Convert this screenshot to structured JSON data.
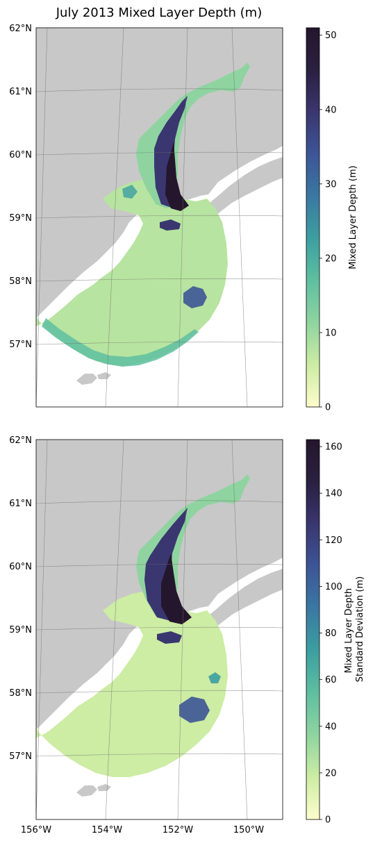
{
  "figure": {
    "title": "July 2013 Mixed Layer Depth (m)"
  },
  "map": {
    "lat_labels": [
      "62°N",
      "61°N",
      "60°N",
      "59°N",
      "58°N",
      "57°N"
    ],
    "lon_labels": [
      "156°W",
      "154°W",
      "152°W",
      "150°W"
    ],
    "colors": {
      "land": "#c8c8c8",
      "coast_white": "#ffffff",
      "grid": "#6e6e6e"
    }
  },
  "panels": [
    {
      "name": "mixed-layer-depth",
      "colorbar": {
        "label_lines": [
          "Mixed Layer Depth (m)"
        ],
        "ticks": [
          "0",
          "10",
          "20",
          "30",
          "40",
          "50"
        ],
        "min": 0,
        "max": 51
      }
    },
    {
      "name": "mixed-layer-depth-std",
      "colorbar": {
        "label_lines": [
          "Mixed Layer Depth",
          "Standard Deviation (m)"
        ],
        "ticks": [
          "0",
          "20",
          "40",
          "60",
          "80",
          "100",
          "120",
          "140",
          "160"
        ],
        "min": 0,
        "max": 163
      }
    }
  ],
  "colormap": {
    "name": "deep",
    "stops": [
      "#fdfdcc",
      "#cdeca4",
      "#8fd4a0",
      "#5ebfa0",
      "#3c9fa0",
      "#3a78a2",
      "#3d5596",
      "#3a3670",
      "#2a2040",
      "#24162c"
    ]
  }
}
